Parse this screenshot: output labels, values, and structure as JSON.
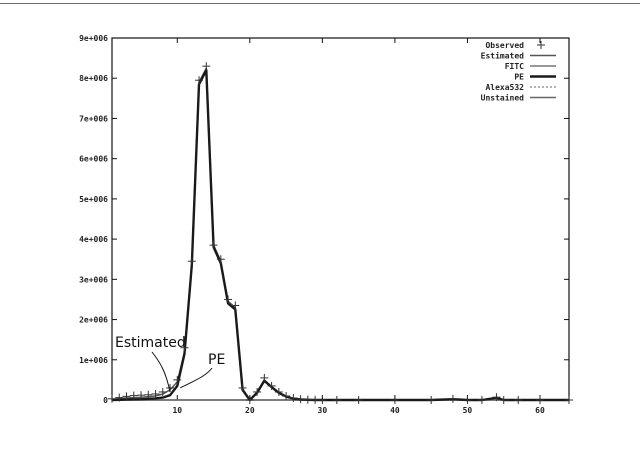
{
  "chart_data": {
    "type": "line",
    "xlim": [
      1,
      64
    ],
    "ylim": [
      0,
      9000000
    ],
    "x_ticks": [
      10,
      20,
      30,
      40,
      50,
      60
    ],
    "x_tick_labels": [
      "10",
      "20",
      "30",
      "40",
      "50",
      "60"
    ],
    "y_ticks": [
      0,
      1000000,
      2000000,
      3000000,
      4000000,
      5000000,
      6000000,
      7000000,
      8000000,
      9000000
    ],
    "y_tick_labels": [
      "0",
      "1e+006",
      "2e+006",
      "3e+006",
      "4e+006",
      "5e+006",
      "6e+006",
      "7e+006",
      "8e+006",
      "9e+006"
    ],
    "grid": false,
    "legend_position": "top-right",
    "series": [
      {
        "name": "Observed",
        "style": "points",
        "x": [
          1,
          2,
          3,
          4,
          5,
          6,
          7,
          8,
          9,
          10,
          11,
          12,
          13,
          14,
          15,
          16,
          17,
          18,
          19,
          20,
          21,
          22,
          23,
          24,
          25,
          26,
          27,
          28,
          29,
          30,
          32,
          35,
          40,
          45,
          48,
          50,
          52,
          54,
          55,
          57,
          60,
          64
        ],
        "y": [
          30000,
          60000,
          90000,
          110000,
          120000,
          130000,
          150000,
          200000,
          300000,
          500000,
          1300000,
          3450000,
          7950000,
          8300000,
          3850000,
          3500000,
          2500000,
          2350000,
          300000,
          0,
          200000,
          550000,
          350000,
          200000,
          100000,
          50000,
          20000,
          10000,
          5000,
          0,
          0,
          0,
          0,
          0,
          30000,
          0,
          0,
          70000,
          0,
          0,
          0,
          0
        ]
      },
      {
        "name": "Estimated",
        "style": "line",
        "x": [
          1,
          3,
          5,
          7,
          8,
          9,
          10,
          11,
          12,
          13,
          14,
          15,
          16,
          17,
          18,
          19,
          20,
          21,
          22,
          23,
          24,
          25,
          26,
          27,
          28,
          29,
          30,
          32,
          35,
          40,
          45,
          48,
          50,
          52,
          54,
          55,
          57,
          60,
          64
        ],
        "y": [
          20000,
          50000,
          70000,
          100000,
          150000,
          250000,
          450000,
          1200000,
          3400000,
          7900000,
          8250000,
          3850000,
          3450000,
          2450000,
          2300000,
          280000,
          0,
          200000,
          500000,
          330000,
          190000,
          90000,
          40000,
          15000,
          5000,
          2000,
          0,
          0,
          0,
          0,
          0,
          25000,
          0,
          0,
          60000,
          0,
          0,
          0,
          0
        ]
      },
      {
        "name": "FITC",
        "style": "line",
        "x": [
          1,
          20,
          40,
          64
        ],
        "y": [
          0,
          0,
          0,
          0
        ]
      },
      {
        "name": "PE",
        "style": "line",
        "x": [
          1,
          3,
          5,
          7,
          8,
          9,
          10,
          11,
          12,
          13,
          14,
          15,
          16,
          17,
          18,
          19,
          20,
          21,
          22,
          23,
          24,
          25,
          26,
          27,
          28,
          29,
          30,
          32,
          35,
          40,
          45,
          48,
          50,
          52,
          54,
          55,
          57,
          60,
          64
        ],
        "y": [
          0,
          10000,
          20000,
          40000,
          60000,
          120000,
          350000,
          1150000,
          3350000,
          7850000,
          8200000,
          3800000,
          3400000,
          2400000,
          2250000,
          250000,
          0,
          180000,
          480000,
          320000,
          180000,
          85000,
          35000,
          12000,
          4000,
          1000,
          0,
          0,
          0,
          0,
          0,
          20000,
          0,
          0,
          55000,
          0,
          0,
          0,
          0
        ]
      },
      {
        "name": "Alexa532",
        "style": "dashed",
        "x": [
          1,
          20,
          40,
          64
        ],
        "y": [
          0,
          0,
          0,
          0
        ]
      },
      {
        "name": "Unstained",
        "style": "line",
        "x": [
          1,
          20,
          40,
          64
        ],
        "y": [
          0,
          0,
          0,
          0
        ]
      }
    ],
    "annotations": [
      {
        "text": "Estimated",
        "x": 9.5,
        "y": 200000
      },
      {
        "text": "PE",
        "x": 10.4,
        "y": 300000
      }
    ]
  }
}
